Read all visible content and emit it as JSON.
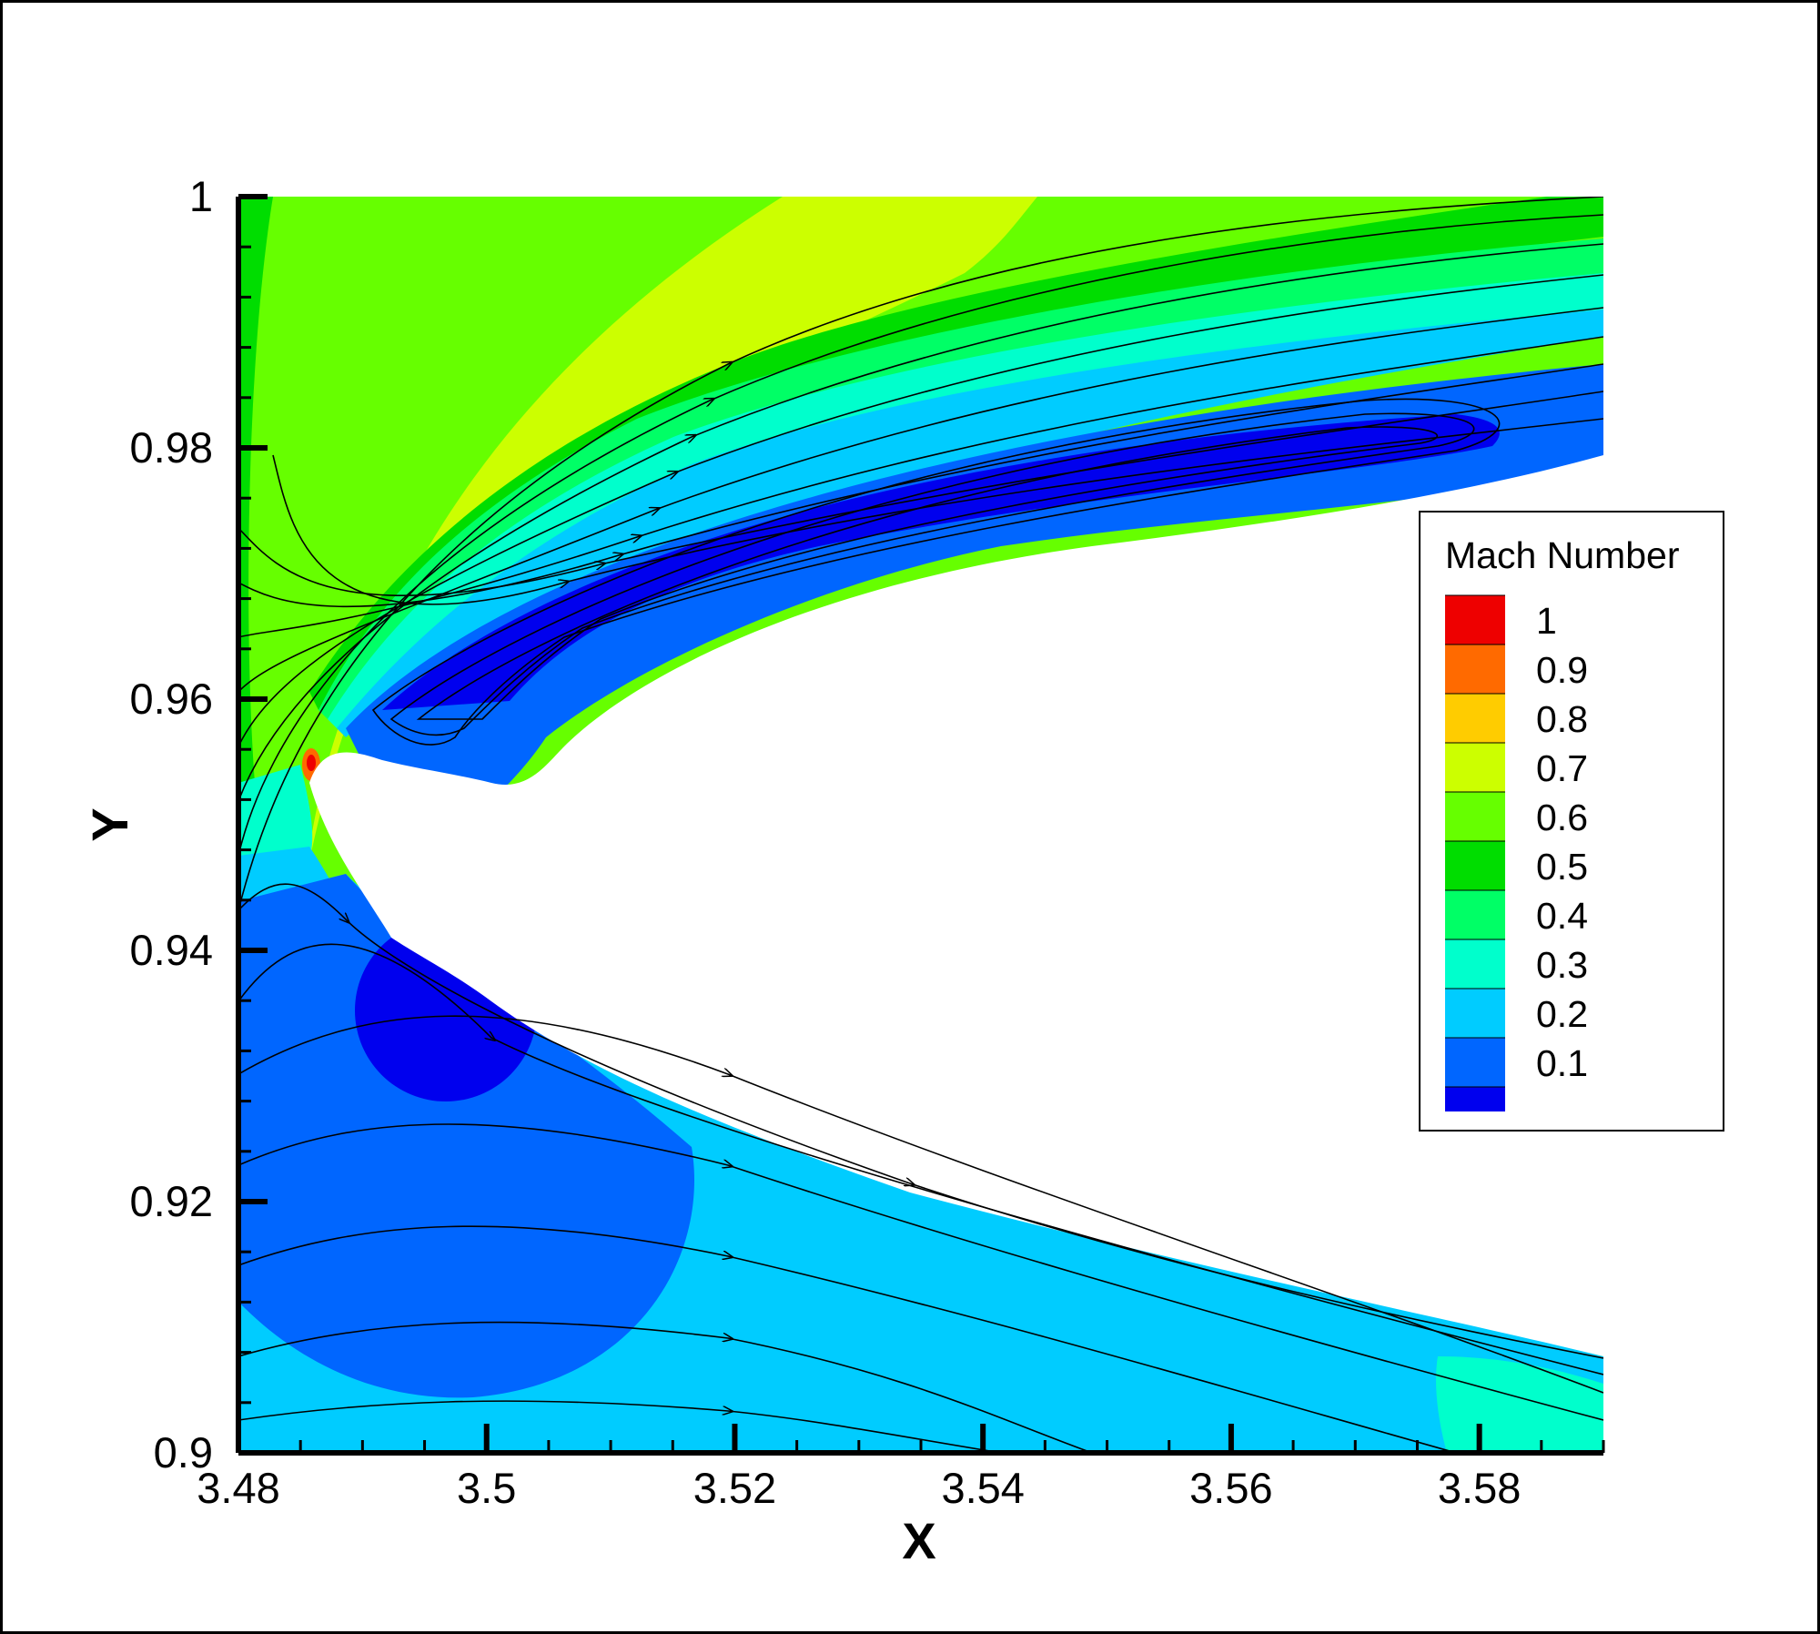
{
  "chart_data": {
    "type": "contour",
    "xlabel": "X",
    "ylabel": "Y",
    "xlim": [
      3.48,
      3.59
    ],
    "ylim": [
      0.9,
      1.0
    ],
    "x_ticks": [
      "3.48",
      "3.5",
      "3.52",
      "3.54",
      "3.56",
      "3.58"
    ],
    "x_tick_values": [
      3.48,
      3.5,
      3.52,
      3.54,
      3.56,
      3.58
    ],
    "y_ticks": [
      "0.9",
      "0.92",
      "0.94",
      "0.96",
      "0.98",
      "1"
    ],
    "y_tick_values": [
      0.9,
      0.92,
      0.94,
      0.96,
      0.98,
      1.0
    ],
    "legend": {
      "title": "Mach Number",
      "placement": "right",
      "levels": [
        {
          "label": "1",
          "value": 1.0,
          "color": "#ee0000"
        },
        {
          "label": "0.9",
          "value": 0.9,
          "color": "#ff6a00"
        },
        {
          "label": "0.8",
          "value": 0.8,
          "color": "#ffcc00"
        },
        {
          "label": "0.7",
          "value": 0.7,
          "color": "#ccff00"
        },
        {
          "label": "0.6",
          "value": 0.6,
          "color": "#66ff00"
        },
        {
          "label": "0.5",
          "value": 0.5,
          "color": "#00dd00"
        },
        {
          "label": "0.4",
          "value": 0.4,
          "color": "#00ff66"
        },
        {
          "label": "0.3",
          "value": 0.3,
          "color": "#00ffcc"
        },
        {
          "label": "0.2",
          "value": 0.2,
          "color": "#00ccff"
        },
        {
          "label": "0.1",
          "value": 0.1,
          "color": "#0066ff"
        }
      ],
      "bottom_color": "#0000ee"
    },
    "grid": false,
    "overlay": "streamlines"
  }
}
